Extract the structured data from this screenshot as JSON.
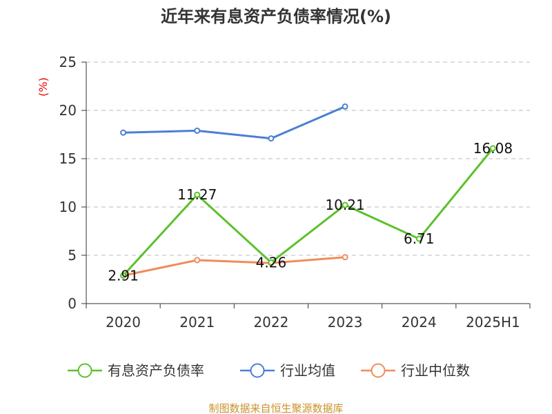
{
  "chart_data": {
    "type": "line",
    "title": "近年来有息资产负债率情况(%)",
    "ylabel": "(%)",
    "categories": [
      "2020",
      "2021",
      "2022",
      "2023",
      "2024",
      "2025H1"
    ],
    "ylim": [
      0,
      25
    ],
    "yticks": [
      0,
      5,
      10,
      15,
      20,
      25
    ],
    "grid": true,
    "legend_position": "bottom",
    "series": [
      {
        "name": "有息资产负债率",
        "color": "#5bc12a",
        "values": [
          2.91,
          11.27,
          4.26,
          10.21,
          6.71,
          16.08
        ],
        "labels": [
          "2.91",
          "11.27",
          "4.26",
          "10.21",
          "6.71",
          "16.08"
        ]
      },
      {
        "name": "行业均值",
        "color": "#4a7fd4",
        "values": [
          17.7,
          17.9,
          17.1,
          20.4,
          null,
          null
        ]
      },
      {
        "name": "行业中位数",
        "color": "#f08c5a",
        "values": [
          2.9,
          4.5,
          4.2,
          4.8,
          null,
          null
        ]
      }
    ],
    "source": "制图数据来自恒生聚源数据库"
  }
}
